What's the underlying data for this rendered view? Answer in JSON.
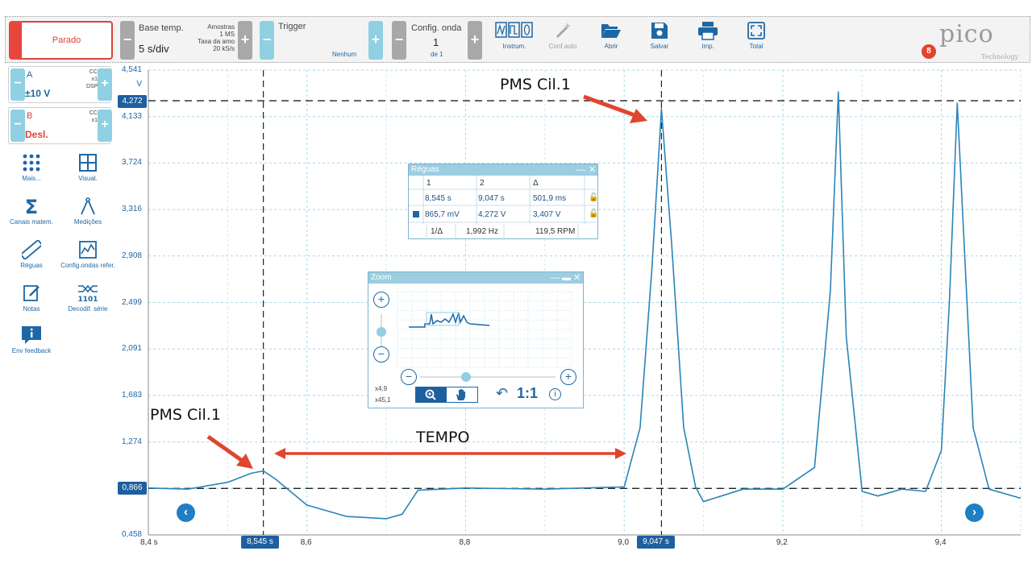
{
  "toolbar": {
    "stop_label": "Parado",
    "timebase": {
      "label": "Base temp.",
      "value": "5 s/div",
      "samples_label": "Amostras",
      "samples_value": "1 MS",
      "rate_label": "Taxa da amo",
      "rate_value": "20 kS/s"
    },
    "trigger": {
      "label": "Trigger",
      "mode": "Nenhum"
    },
    "waveform": {
      "label": "Config. onda",
      "value": "1",
      "of": "de 1"
    },
    "tools": [
      {
        "label": "Instrum."
      },
      {
        "label": "Conf.auto"
      },
      {
        "label": "Abrir"
      },
      {
        "label": "Salvar"
      },
      {
        "label": "Imp."
      },
      {
        "label": "Total"
      }
    ],
    "logo": "pico",
    "logo_sub": "Technology",
    "notification_count": "8"
  },
  "channels": [
    {
      "name": "A",
      "range": "±10 V",
      "coupling": [
        "CC",
        "x1",
        "DSP"
      ],
      "color": "#1e67a5"
    },
    {
      "name": "B",
      "range": "Desl.",
      "coupling": [
        "CC",
        "x1"
      ],
      "color": "#d9443b"
    }
  ],
  "sidebar": [
    {
      "label": "Mais..."
    },
    {
      "label": "Visual."
    },
    {
      "label": "Canais matem."
    },
    {
      "label": "Medições"
    },
    {
      "label": "Réguas"
    },
    {
      "label": "Config.ondas refer."
    },
    {
      "label": "Notas"
    },
    {
      "label": "Decodif. série"
    },
    {
      "label": "Env feedback"
    }
  ],
  "axis": {
    "y_unit": "V",
    "y_ticks": [
      "4,541",
      "4,133",
      "3,724",
      "3,316",
      "2,908",
      "2,499",
      "2,091",
      "1,683",
      "1,274",
      "0,866",
      "0,458"
    ],
    "x_ticks": [
      "8,4 s",
      "8,6",
      "8,8",
      "9,0",
      "9,2",
      "9,4"
    ],
    "ruler_y1": "4,272",
    "ruler_y2": "0,866",
    "ruler_x1": "8,545 s",
    "ruler_x2": "9,047 s"
  },
  "annotations": {
    "top_label": "PMS Cil.1",
    "bottom_label": "PMS Cil.1",
    "interval_label": "TEMPO"
  },
  "rulers_window": {
    "title": "Réguas",
    "headers": [
      "1",
      "2",
      "Δ"
    ],
    "time_row": [
      "8,545 s",
      "9,047 s",
      "501,9 ms"
    ],
    "volt_row": [
      "865,7 mV",
      "4,272 V",
      "3,407 V"
    ],
    "freq_row": [
      "1/Δ",
      "1,992 Hz",
      "119,5 RPM"
    ]
  },
  "zoom_window": {
    "title": "Zoom",
    "zoom_x": "x4,9",
    "zoom_y": "x45,1",
    "ratio_label": "1:1"
  },
  "chart_data": {
    "type": "line",
    "xlim": [
      8.4,
      9.5
    ],
    "ylim": [
      0.458,
      4.541
    ],
    "grid": true,
    "series": [
      {
        "x": [
          8.4,
          8.45,
          8.5,
          8.53,
          8.545,
          8.56,
          8.6,
          8.65,
          8.7,
          8.72,
          8.74,
          8.8,
          8.9,
          9.0,
          9.02,
          9.035,
          9.047,
          9.06,
          9.075,
          9.09,
          9.1,
          9.15,
          9.2,
          9.24,
          9.26,
          9.27,
          9.28,
          9.3,
          9.32,
          9.35,
          9.38,
          9.4,
          9.41,
          9.42,
          9.44,
          9.46,
          9.5
        ],
        "y": [
          0.87,
          0.86,
          0.92,
          1.0,
          1.02,
          0.95,
          0.72,
          0.62,
          0.6,
          0.64,
          0.85,
          0.87,
          0.86,
          0.88,
          1.4,
          2.8,
          4.2,
          3.0,
          1.4,
          0.88,
          0.75,
          0.86,
          0.86,
          1.05,
          2.6,
          4.35,
          2.2,
          0.84,
          0.8,
          0.86,
          0.84,
          1.2,
          2.5,
          4.25,
          1.4,
          0.86,
          0.78
        ]
      }
    ]
  }
}
